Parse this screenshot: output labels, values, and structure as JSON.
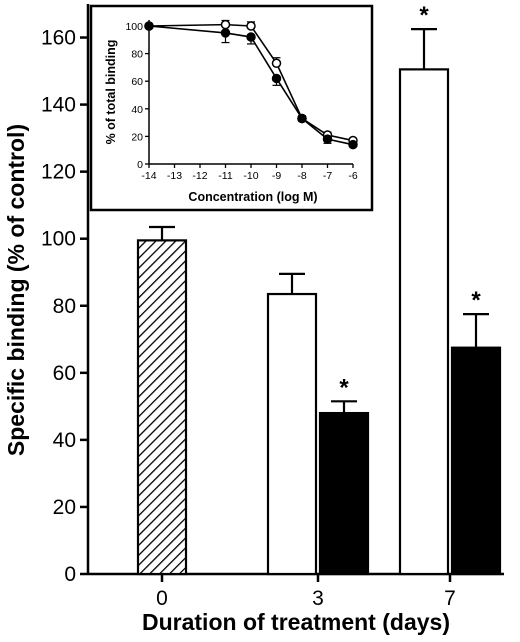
{
  "chart_data": [
    {
      "type": "bar",
      "xlabel": "Duration of treatment (days)",
      "ylabel": "Specific binding (% of control)",
      "categories": [
        "0",
        "3",
        "7"
      ],
      "ylim": [
        0,
        170
      ],
      "yticks": [
        0,
        20,
        40,
        60,
        80,
        100,
        120,
        140,
        160
      ],
      "grid": false,
      "bars": [
        {
          "category": "0",
          "fill": "hatched",
          "value": 99.5,
          "error": 4
        },
        {
          "category": "3",
          "fill": "white",
          "value": 83.5,
          "error": 6
        },
        {
          "category": "3",
          "fill": "black",
          "value": 48,
          "error": 3.5,
          "significance": "*"
        },
        {
          "category": "7",
          "fill": "white",
          "value": 150.5,
          "error": 12,
          "significance": "*"
        },
        {
          "category": "7",
          "fill": "black",
          "value": 67.5,
          "error": 10,
          "significance": "*"
        }
      ],
      "colors": {
        "bar_edge": "#000000",
        "black_fill": "#000000",
        "white_fill": "#ffffff"
      }
    },
    {
      "type": "line",
      "xlabel": "Concentration (log M)",
      "ylabel": "% of total binding",
      "xlim": [
        -14,
        -6
      ],
      "ylim": [
        0,
        100
      ],
      "xticks": [
        -14,
        -13,
        -12,
        -11,
        -10,
        -9,
        -8,
        -7,
        -6
      ],
      "yticks": [
        0,
        20,
        40,
        60,
        80,
        100
      ],
      "series": [
        {
          "marker": "open-circle",
          "x": [
            -14,
            -11,
            -10,
            -9,
            -8,
            -7,
            -6
          ],
          "y": [
            100,
            101,
            100,
            73,
            33,
            21,
            17
          ],
          "error": [
            0,
            3,
            3,
            4,
            2,
            2,
            1
          ]
        },
        {
          "marker": "filled-circle",
          "x": [
            -14,
            -11,
            -10,
            -9,
            -8,
            -7,
            -6
          ],
          "y": [
            100,
            95,
            92,
            62,
            33,
            18,
            14
          ],
          "error": [
            0,
            7,
            5,
            5,
            2,
            3,
            1
          ]
        }
      ]
    }
  ]
}
